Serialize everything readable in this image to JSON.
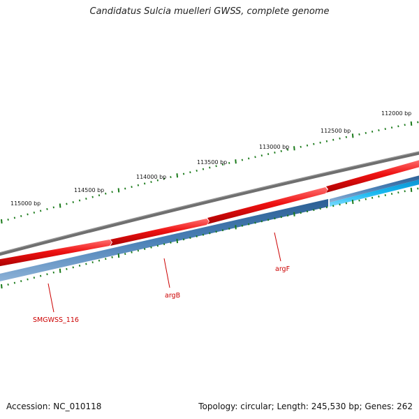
{
  "title": "Candidatus Sulcia muelleri GWSS, complete genome",
  "footer": {
    "accession": "Accession: NC_010118",
    "summary": "Topology: circular; Length: 245,530 bp; Genes: 262"
  },
  "colors": {
    "backbone": "#7a7a7a",
    "forward_gene": "#ee1111",
    "reverse_gene": "#3f74a8",
    "reverse_gene_highlight": "#18b8f0",
    "tick": "#1a7a1a",
    "label": "#cc0000"
  },
  "scale": {
    "unit": "bp",
    "labels": [
      "115000 bp",
      "114500 bp",
      "114000 bp",
      "113500 bp",
      "113000 bp",
      "112500 bp",
      "112000 bp"
    ]
  },
  "genes": [
    {
      "name": "SMGWSS_116"
    },
    {
      "name": "argB"
    },
    {
      "name": "argF"
    }
  ]
}
